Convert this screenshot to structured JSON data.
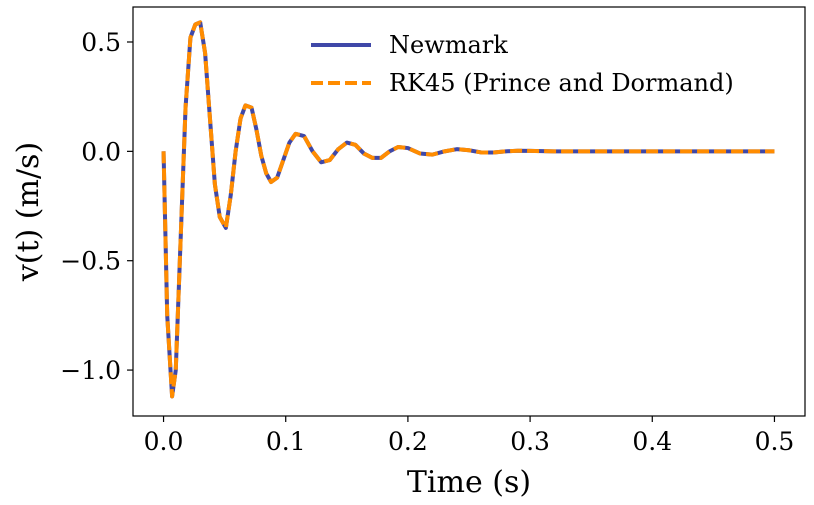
{
  "chart_data": {
    "type": "line",
    "title": "",
    "xlabel": "Time (s)",
    "ylabel": "v(t) (m/s)",
    "xlim": [
      -0.025,
      0.525
    ],
    "ylim": [
      -1.21,
      0.66
    ],
    "xticks": [
      0.0,
      0.1,
      0.2,
      0.3,
      0.4,
      0.5
    ],
    "xtick_labels": [
      "0.0",
      "0.1",
      "0.2",
      "0.3",
      "0.4",
      "0.5"
    ],
    "yticks": [
      0.5,
      0.0,
      -0.5,
      -1.0
    ],
    "ytick_labels": [
      "0.5",
      "0.0",
      "−0.5",
      "−1.0"
    ],
    "grid": false,
    "legend": {
      "position": "top-right"
    },
    "x": [
      0.0,
      0.003,
      0.007,
      0.01,
      0.014,
      0.018,
      0.022,
      0.026,
      0.03,
      0.034,
      0.038,
      0.042,
      0.046,
      0.051,
      0.055,
      0.059,
      0.063,
      0.067,
      0.072,
      0.076,
      0.08,
      0.084,
      0.088,
      0.093,
      0.098,
      0.103,
      0.108,
      0.115,
      0.122,
      0.129,
      0.136,
      0.143,
      0.15,
      0.157,
      0.164,
      0.171,
      0.178,
      0.185,
      0.192,
      0.2,
      0.21,
      0.22,
      0.23,
      0.24,
      0.25,
      0.26,
      0.27,
      0.28,
      0.29,
      0.3,
      0.32,
      0.35,
      0.4,
      0.45,
      0.5
    ],
    "series": [
      {
        "name": "Newmark",
        "color": "#3f48a8",
        "style": "solid",
        "y": [
          0.0,
          -0.75,
          -1.12,
          -1.0,
          -0.4,
          0.2,
          0.52,
          0.58,
          0.59,
          0.45,
          0.15,
          -0.15,
          -0.3,
          -0.35,
          -0.2,
          0.0,
          0.15,
          0.21,
          0.2,
          0.1,
          -0.02,
          -0.1,
          -0.14,
          -0.12,
          -0.04,
          0.04,
          0.08,
          0.07,
          0.0,
          -0.05,
          -0.04,
          0.01,
          0.04,
          0.03,
          -0.01,
          -0.03,
          -0.03,
          0.0,
          0.02,
          0.015,
          -0.01,
          -0.015,
          0.0,
          0.01,
          0.005,
          -0.005,
          -0.005,
          0.0,
          0.003,
          0.002,
          0.0,
          0.0,
          0.0,
          0.0,
          0.0
        ]
      },
      {
        "name": "RK45 (Prince and Dormand)",
        "color": "#ff8c00",
        "style": "dashed",
        "y": [
          0.0,
          -0.75,
          -1.12,
          -1.0,
          -0.4,
          0.2,
          0.52,
          0.58,
          0.59,
          0.45,
          0.15,
          -0.15,
          -0.3,
          -0.35,
          -0.2,
          0.0,
          0.15,
          0.21,
          0.2,
          0.1,
          -0.02,
          -0.1,
          -0.14,
          -0.12,
          -0.04,
          0.04,
          0.08,
          0.07,
          0.0,
          -0.05,
          -0.04,
          0.01,
          0.04,
          0.03,
          -0.01,
          -0.03,
          -0.03,
          0.0,
          0.02,
          0.015,
          -0.01,
          -0.015,
          0.0,
          0.01,
          0.005,
          -0.005,
          -0.005,
          0.0,
          0.003,
          0.002,
          0.0,
          0.0,
          0.0,
          0.0,
          0.0
        ]
      }
    ]
  }
}
